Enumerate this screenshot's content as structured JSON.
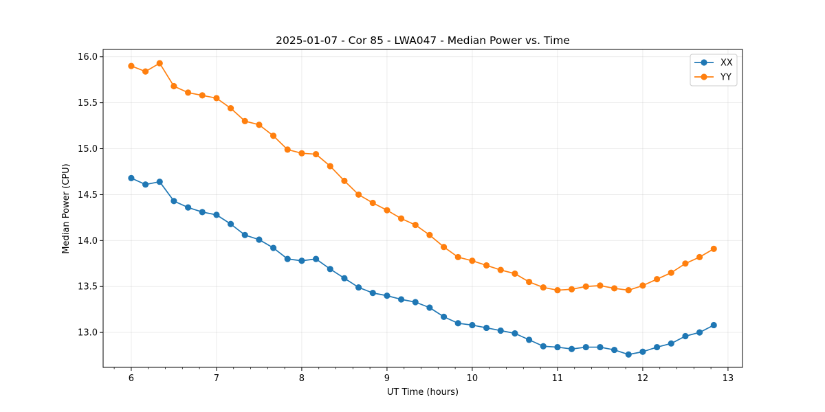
{
  "chart_data": {
    "type": "line",
    "title": "2025-01-07 - Cor 85 - LWA047 - Median Power vs. Time",
    "xlabel": "UT Time (hours)",
    "ylabel": "Median Power (CPU)",
    "xlim": [
      5.67,
      13.17
    ],
    "ylim": [
      12.62,
      16.08
    ],
    "xticks": [
      6,
      7,
      8,
      9,
      10,
      11,
      12,
      13
    ],
    "yticks": [
      13.0,
      13.5,
      14.0,
      14.5,
      15.0,
      15.5,
      16.0
    ],
    "ytick_labels": [
      "13.0",
      "13.5",
      "14.0",
      "14.5",
      "15.0",
      "15.5",
      "16.0"
    ],
    "grid": true,
    "legend_position": "top-right",
    "x": [
      6.0,
      6.1667,
      6.3333,
      6.5,
      6.6667,
      6.8333,
      7.0,
      7.1667,
      7.3333,
      7.5,
      7.6667,
      7.8333,
      8.0,
      8.1667,
      8.3333,
      8.5,
      8.6667,
      8.8333,
      9.0,
      9.1667,
      9.3333,
      9.5,
      9.6667,
      9.8333,
      10.0,
      10.1667,
      10.3333,
      10.5,
      10.6667,
      10.8333,
      11.0,
      11.1667,
      11.3333,
      11.5,
      11.6667,
      11.8333,
      12.0,
      12.1667,
      12.3333,
      12.5,
      12.6667,
      12.8333
    ],
    "series": [
      {
        "name": "XX",
        "color": "#1f77b4",
        "values": [
          14.68,
          14.61,
          14.64,
          14.43,
          14.36,
          14.31,
          14.28,
          14.18,
          14.06,
          14.01,
          13.92,
          13.8,
          13.78,
          13.8,
          13.69,
          13.59,
          13.49,
          13.43,
          13.4,
          13.36,
          13.33,
          13.27,
          13.17,
          13.1,
          13.08,
          13.05,
          13.02,
          12.99,
          12.92,
          12.85,
          12.84,
          12.82,
          12.84,
          12.84,
          12.81,
          12.76,
          12.79,
          12.84,
          12.88,
          12.96,
          13.0,
          13.08
        ]
      },
      {
        "name": "YY",
        "color": "#ff7f0e",
        "values": [
          15.9,
          15.84,
          15.93,
          15.68,
          15.61,
          15.58,
          15.55,
          15.44,
          15.3,
          15.26,
          15.14,
          14.99,
          14.95,
          14.94,
          14.81,
          14.65,
          14.5,
          14.41,
          14.33,
          14.24,
          14.17,
          14.06,
          13.93,
          13.82,
          13.78,
          13.73,
          13.68,
          13.64,
          13.55,
          13.49,
          13.46,
          13.47,
          13.5,
          13.51,
          13.48,
          13.46,
          13.51,
          13.58,
          13.65,
          13.75,
          13.82,
          13.91
        ]
      }
    ]
  }
}
